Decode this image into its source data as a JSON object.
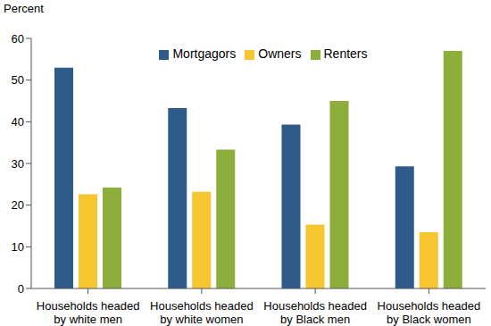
{
  "chart_data": {
    "type": "bar",
    "y_label": "Percent",
    "categories": [
      "Households headed by white men",
      "Households headed by white women",
      "Households headed by Black men",
      "Households headed by Black women"
    ],
    "series": [
      {
        "name": "Mortgagors",
        "color": "#2f5b8b",
        "values": [
          53,
          43.3,
          39.3,
          29.3
        ]
      },
      {
        "name": "Owners",
        "color": "#f6c530",
        "values": [
          22.6,
          23.2,
          15.3,
          13.5
        ]
      },
      {
        "name": "Renters",
        "color": "#8dae3b",
        "values": [
          24.2,
          33.3,
          45,
          57
        ]
      }
    ],
    "ylim": [
      0,
      60
    ],
    "yticks": [
      0,
      10,
      20,
      30,
      40,
      50,
      60
    ],
    "grid": false,
    "legend": "top"
  }
}
